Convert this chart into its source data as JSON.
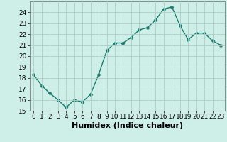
{
  "x": [
    0,
    1,
    2,
    3,
    4,
    5,
    6,
    7,
    8,
    9,
    10,
    11,
    12,
    13,
    14,
    15,
    16,
    17,
    18,
    19,
    20,
    21,
    22,
    23
  ],
  "y": [
    18.3,
    17.3,
    16.6,
    16.0,
    15.3,
    16.0,
    15.8,
    16.5,
    18.3,
    20.5,
    21.2,
    21.2,
    21.7,
    22.4,
    22.6,
    23.3,
    24.3,
    24.5,
    22.8,
    21.5,
    22.1,
    22.1,
    21.4,
    21.0
  ],
  "line_color": "#1a7a6e",
  "marker": "D",
  "marker_size": 2.5,
  "bg_color": "#ceeee8",
  "grid_color": "#b0cdc8",
  "xlabel": "Humidex (Indice chaleur)",
  "ylim": [
    15,
    25
  ],
  "xlim_min": -0.5,
  "xlim_max": 23.5,
  "yticks": [
    15,
    16,
    17,
    18,
    19,
    20,
    21,
    22,
    23,
    24
  ],
  "xticks": [
    0,
    1,
    2,
    3,
    4,
    5,
    6,
    7,
    8,
    9,
    10,
    11,
    12,
    13,
    14,
    15,
    16,
    17,
    18,
    19,
    20,
    21,
    22,
    23
  ],
  "tick_fontsize": 6.5,
  "xlabel_fontsize": 8,
  "linewidth": 1.0
}
